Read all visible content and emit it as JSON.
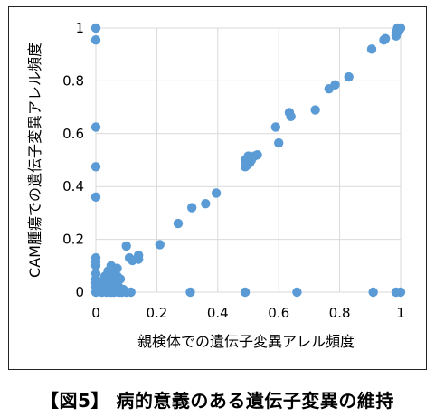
{
  "caption": "【図5】 病的意義のある遺伝子変異の維持",
  "chart_data": {
    "type": "scatter",
    "title": "",
    "xlabel": "親検体での遺伝子変異アレル頻度",
    "ylabel": "CAM腫瘍での遺伝子変異アレル頻度",
    "xlim": [
      0,
      1
    ],
    "ylim": [
      0,
      1
    ],
    "xticks": [
      "0",
      "0.2",
      "0.4",
      "0.6",
      "0.8",
      "1"
    ],
    "yticks": [
      "0",
      "0.2",
      "0.4",
      "0.6",
      "0.8",
      "1"
    ],
    "grid": true,
    "marker_color": "#5b9bd5",
    "series": [
      {
        "points": [
          [
            0.0,
            1.0
          ],
          [
            0.0,
            0.955
          ],
          [
            0.0,
            0.625
          ],
          [
            0.0,
            0.475
          ],
          [
            0.0,
            0.36
          ],
          [
            0.0,
            0.13
          ],
          [
            0.0,
            0.115
          ],
          [
            0.0,
            0.1
          ],
          [
            0.0,
            0.07
          ],
          [
            0.0,
            0.05
          ],
          [
            0.0,
            0.035
          ],
          [
            0.0,
            0.02
          ],
          [
            0.0,
            0.0
          ],
          [
            0.01,
            0.03
          ],
          [
            0.01,
            0.01
          ],
          [
            0.015,
            0.005
          ],
          [
            0.02,
            0.0
          ],
          [
            0.02,
            0.02
          ],
          [
            0.025,
            0.04
          ],
          [
            0.03,
            0.01
          ],
          [
            0.03,
            0.06
          ],
          [
            0.035,
            0.0
          ],
          [
            0.04,
            0.03
          ],
          [
            0.04,
            0.08
          ],
          [
            0.045,
            0.05
          ],
          [
            0.05,
            0.0
          ],
          [
            0.05,
            0.02
          ],
          [
            0.05,
            0.1
          ],
          [
            0.055,
            0.07
          ],
          [
            0.06,
            0.04
          ],
          [
            0.06,
            0.0
          ],
          [
            0.065,
            0.03
          ],
          [
            0.07,
            0.09
          ],
          [
            0.07,
            0.06
          ],
          [
            0.075,
            0.0
          ],
          [
            0.075,
            0.02
          ],
          [
            0.08,
            0.05
          ],
          [
            0.085,
            0.0
          ],
          [
            0.09,
            0.01
          ],
          [
            0.1,
            0.0
          ],
          [
            0.1,
            0.175
          ],
          [
            0.11,
            0.13
          ],
          [
            0.115,
            0.0
          ],
          [
            0.12,
            0.12
          ],
          [
            0.14,
            0.125
          ],
          [
            0.14,
            0.14
          ],
          [
            0.21,
            0.18
          ],
          [
            0.27,
            0.26
          ],
          [
            0.315,
            0.32
          ],
          [
            0.31,
            0.0
          ],
          [
            0.36,
            0.335
          ],
          [
            0.395,
            0.375
          ],
          [
            0.49,
            0.475
          ],
          [
            0.495,
            0.48
          ],
          [
            0.49,
            0.5
          ],
          [
            0.5,
            0.515
          ],
          [
            0.505,
            0.49
          ],
          [
            0.51,
            0.5
          ],
          [
            0.52,
            0.515
          ],
          [
            0.53,
            0.52
          ],
          [
            0.49,
            0.0
          ],
          [
            0.59,
            0.625
          ],
          [
            0.6,
            0.565
          ],
          [
            0.635,
            0.68
          ],
          [
            0.64,
            0.665
          ],
          [
            0.66,
            0.0
          ],
          [
            0.72,
            0.69
          ],
          [
            0.765,
            0.77
          ],
          [
            0.785,
            0.785
          ],
          [
            0.83,
            0.815
          ],
          [
            0.905,
            0.92
          ],
          [
            0.91,
            0.0
          ],
          [
            0.945,
            0.955
          ],
          [
            0.95,
            0.96
          ],
          [
            0.985,
            0.97
          ],
          [
            0.985,
            0.985
          ],
          [
            0.99,
            1.0
          ],
          [
            0.995,
            0.99
          ],
          [
            1.0,
            1.0
          ],
          [
            0.985,
            0.0
          ],
          [
            1.0,
            0.0
          ]
        ]
      }
    ]
  }
}
